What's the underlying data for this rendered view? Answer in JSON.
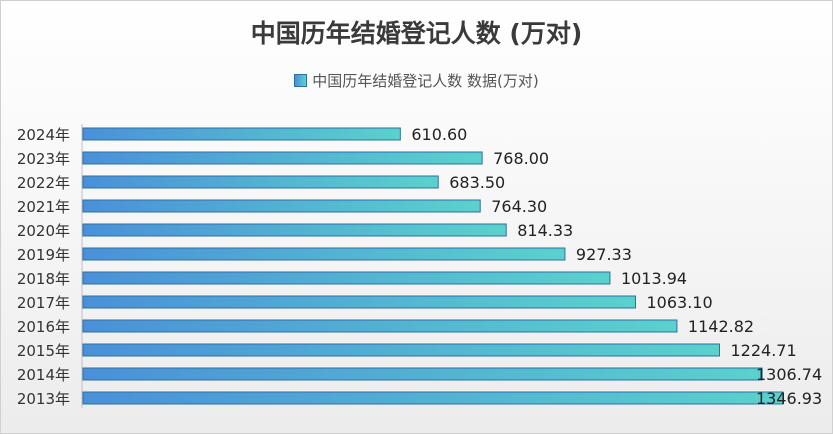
{
  "chart_data": {
    "type": "bar",
    "orientation": "horizontal",
    "title": "中国历年结婚登记人数 (万对)",
    "legend": {
      "label": "中国历年结婚登记人数 数据(万对)",
      "position": "top"
    },
    "categories": [
      "2024年",
      "2023年",
      "2022年",
      "2021年",
      "2020年",
      "2019年",
      "2018年",
      "2017年",
      "2016年",
      "2015年",
      "2014年",
      "2013年"
    ],
    "values": [
      610.6,
      768.0,
      683.5,
      764.3,
      814.33,
      927.33,
      1013.94,
      1063.1,
      1142.82,
      1224.71,
      1306.74,
      1346.93
    ],
    "value_labels": [
      "610.60",
      "768.00",
      "683.50",
      "764.30",
      "814.33",
      "927.33",
      "1013.94",
      "1063.10",
      "1142.82",
      "1224.71",
      "1306.74",
      "1346.93"
    ],
    "xlim": [
      0,
      1346.93
    ],
    "grid": false,
    "colors": {
      "bar_start": "#4a90d9",
      "bar_end": "#5ad2cc",
      "bar_edge": "#2f6fa6"
    }
  }
}
